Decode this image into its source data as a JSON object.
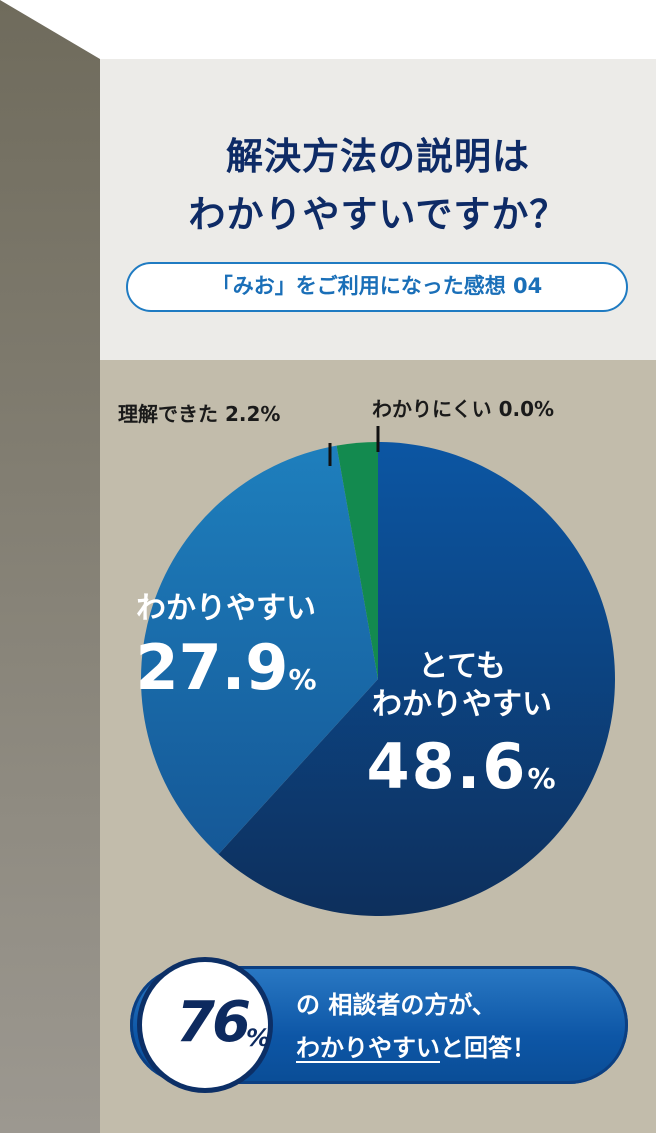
{
  "title": {
    "line1": "解決方法の説明は",
    "line2": "わかりやすいですか？"
  },
  "subtitle": "「みお」をご利用になった感想 04",
  "chart_data": {
    "type": "pie",
    "slices": [
      {
        "label": "とても\nわかりやすい",
        "label_line1": "とても",
        "label_line2": "わかりやすい",
        "value": 48.6,
        "display": "48.6",
        "color": "#0d3f7f"
      },
      {
        "label": "わかりやすい",
        "value": 27.9,
        "display": "27.9",
        "color": "#1d6fad"
      },
      {
        "label": "理解できた",
        "value": 2.2,
        "display": "2.2%",
        "color": "#138a4f"
      },
      {
        "label": "わかりにくい",
        "value": 0.0,
        "display": "0.0%",
        "color": "#0b5fa8"
      }
    ],
    "percent_sign": "%"
  },
  "callout": {
    "number": "76",
    "percent": "%",
    "line1": "の 相談者の方が、",
    "line2_underlined": "わかりやすい",
    "line2_rest": "と回答！"
  },
  "colors": {
    "title": "#0e2b66",
    "panel_top": "#ecebe8",
    "panel_bottom": "#c2bcab",
    "accent": "#1f7bc2"
  }
}
